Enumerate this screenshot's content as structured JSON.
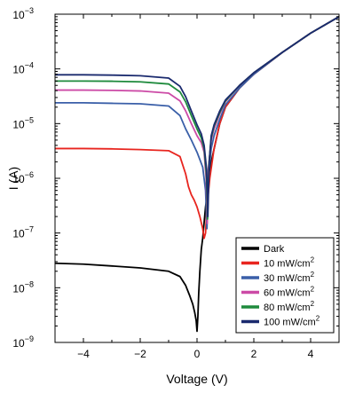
{
  "chart_data": {
    "type": "line",
    "title": "",
    "xlabel": "Voltage (V)",
    "ylabel": "I (A)",
    "xlim": [
      -5,
      5
    ],
    "ylim": [
      1e-09,
      0.001
    ],
    "yscale": "log",
    "grid": false,
    "legend_position": "bottom-right",
    "x_ticks": [
      -4,
      -2,
      0,
      2,
      4
    ],
    "x_tick_labels": [
      "−4",
      "−2",
      "0",
      "2",
      "4"
    ],
    "y_ticks": [
      1e-09,
      1e-08,
      1e-07,
      1e-06,
      1e-05,
      0.0001,
      0.001
    ],
    "y_tick_labels": [
      {
        "base": "10",
        "exp": "−9"
      },
      {
        "base": "10",
        "exp": "−8"
      },
      {
        "base": "10",
        "exp": "−7"
      },
      {
        "base": "10",
        "exp": "−6"
      },
      {
        "base": "10",
        "exp": "−5"
      },
      {
        "base": "10",
        "exp": "−4"
      },
      {
        "base": "10",
        "exp": "−3"
      }
    ],
    "series": [
      {
        "name": "Dark",
        "label_main": "Dark",
        "label_sup": "",
        "color": "#000000",
        "x": [
          -5,
          -4,
          -3,
          -2,
          -1,
          -0.6,
          -0.4,
          -0.25,
          -0.15,
          -0.08,
          -0.03,
          0.0,
          0.03,
          0.06,
          0.1,
          0.15,
          0.2,
          0.3,
          0.5,
          0.8,
          1,
          1.5,
          2,
          3,
          4,
          5
        ],
        "y": [
          2.8e-08,
          2.7e-08,
          2.5e-08,
          2.3e-08,
          2e-08,
          1.6e-08,
          1.1e-08,
          7e-09,
          5e-09,
          3.5e-09,
          2.5e-09,
          1.6e-09,
          3e-09,
          8e-09,
          2e-08,
          5e-08,
          8e-08,
          3e-07,
          2e-06,
          1e-05,
          2e-05,
          4.5e-05,
          8e-05,
          0.0002,
          0.00045,
          0.0009
        ]
      },
      {
        "name": "10 mW/cm2",
        "label_main": "10 mW/cm",
        "label_sup": "2",
        "color": "#e8251f",
        "x": [
          -5,
          -4,
          -3,
          -2,
          -1,
          -0.6,
          -0.4,
          -0.3,
          -0.2,
          -0.1,
          0.0,
          0.1,
          0.2,
          0.25,
          0.3,
          0.35,
          0.45,
          0.6,
          0.8,
          1,
          1.5,
          2,
          3,
          4,
          5
        ],
        "y": [
          3.5e-06,
          3.5e-06,
          3.45e-06,
          3.35e-06,
          3.2e-06,
          2.5e-06,
          1.2e-06,
          7e-07,
          5e-07,
          4e-07,
          3e-07,
          2e-07,
          1.2e-07,
          8e-08,
          1e-07,
          3e-07,
          1e-06,
          3.5e-06,
          1e-05,
          2e-05,
          4.5e-05,
          8e-05,
          0.0002,
          0.00045,
          0.0009
        ]
      },
      {
        "name": "30 mW/cm2",
        "label_main": "30 mW/cm",
        "label_sup": "2",
        "color": "#3a5fa8",
        "x": [
          -5,
          -4,
          -3,
          -2,
          -1,
          -0.6,
          -0.4,
          -0.2,
          0.0,
          0.1,
          0.2,
          0.3,
          0.35,
          0.4,
          0.5,
          0.6,
          0.8,
          1,
          1.5,
          2,
          3,
          4,
          5
        ],
        "y": [
          2.4e-05,
          2.4e-05,
          2.35e-05,
          2.3e-05,
          2.1e-05,
          1.4e-05,
          8e-06,
          5e-06,
          3e-06,
          2.2e-06,
          1.6e-06,
          6e-07,
          1.2e-07,
          1e-06,
          3.5e-06,
          6e-06,
          1.2e-05,
          2.2e-05,
          4.5e-05,
          8e-05,
          0.0002,
          0.00045,
          0.0009
        ]
      },
      {
        "name": "60 mW/cm2",
        "label_main": "60 mW/cm",
        "label_sup": "2",
        "color": "#cc4aa6",
        "x": [
          -5,
          -4,
          -3,
          -2,
          -1,
          -0.6,
          -0.4,
          -0.2,
          0.0,
          0.15,
          0.25,
          0.32,
          0.36,
          0.4,
          0.5,
          0.6,
          0.8,
          1,
          1.5,
          2,
          3,
          4,
          5
        ],
        "y": [
          4.1e-05,
          4.1e-05,
          4.05e-05,
          3.95e-05,
          3.6e-05,
          2.6e-05,
          1.7e-05,
          1e-05,
          6e-06,
          4.5e-06,
          3e-06,
          1e-06,
          1.5e-07,
          1.5e-06,
          5e-06,
          8e-06,
          1.5e-05,
          2.5e-05,
          5e-05,
          8.5e-05,
          0.0002,
          0.00045,
          0.0009
        ]
      },
      {
        "name": "80 mW/cm2",
        "label_main": "80 mW/cm",
        "label_sup": "2",
        "color": "#1e8a3c",
        "x": [
          -5,
          -4,
          -3,
          -2,
          -1,
          -0.6,
          -0.4,
          -0.2,
          0.0,
          0.15,
          0.25,
          0.33,
          0.37,
          0.42,
          0.5,
          0.6,
          0.8,
          1,
          1.5,
          2,
          3,
          4,
          5
        ],
        "y": [
          6e-05,
          6e-05,
          5.95e-05,
          5.8e-05,
          5.3e-05,
          3.8e-05,
          2.5e-05,
          1.4e-05,
          8e-06,
          5.5e-06,
          3.5e-06,
          1.2e-06,
          1.8e-07,
          1.8e-06,
          5.5e-06,
          9e-06,
          1.6e-05,
          2.6e-05,
          5e-05,
          8.5e-05,
          0.0002,
          0.00045,
          0.0009
        ]
      },
      {
        "name": "100 mW/cm2",
        "label_main": "100 mW/cm",
        "label_sup": "2",
        "color": "#1a2a6e",
        "x": [
          -5,
          -4,
          -3,
          -2,
          -1,
          -0.6,
          -0.4,
          -0.2,
          0.0,
          0.15,
          0.25,
          0.34,
          0.38,
          0.43,
          0.5,
          0.6,
          0.8,
          1,
          1.5,
          2,
          3,
          4,
          5
        ],
        "y": [
          7.8e-05,
          7.8e-05,
          7.7e-05,
          7.5e-05,
          6.8e-05,
          4.8e-05,
          3.1e-05,
          1.7e-05,
          9.5e-06,
          6.5e-06,
          4e-06,
          1.4e-06,
          2e-07,
          2e-06,
          6e-06,
          9.5e-06,
          1.7e-05,
          2.7e-05,
          5e-05,
          8.5e-05,
          0.0002,
          0.00045,
          0.0009
        ]
      }
    ]
  }
}
